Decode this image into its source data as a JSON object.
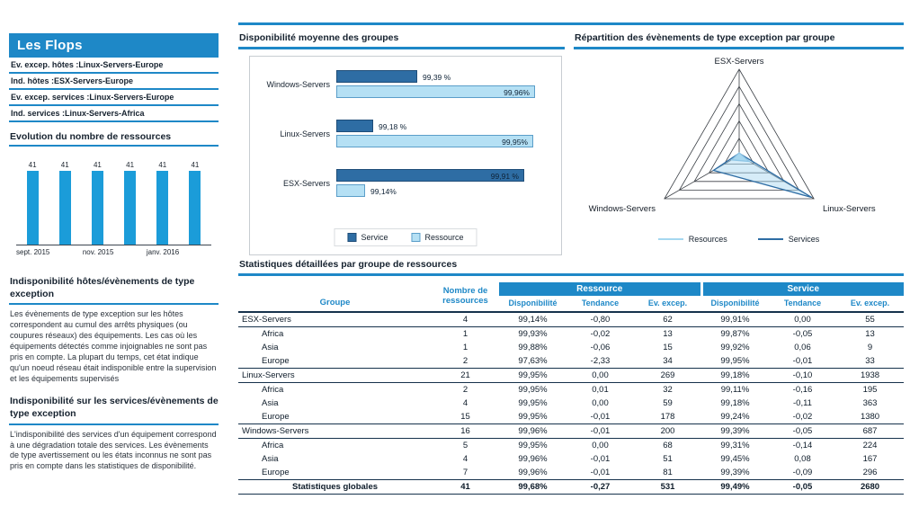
{
  "colors": {
    "accent_blue": "#1e88c7",
    "evolution_bar_blue": "#1b9cd9",
    "service_dark_blue": "#2e6da4",
    "ressource_light_blue": "#b5e0f4",
    "table_line_navy": "#16324c"
  },
  "sidebar": {
    "title": "Les Flops",
    "items": [
      {
        "label": "Ev. excep. hôtes :",
        "value": "Linux-Servers-Europe"
      },
      {
        "label": "Ind. hôtes :",
        "value": "ESX-Servers-Europe"
      },
      {
        "label": "Ev. excep. services :",
        "value": "Linux-Servers-Europe"
      },
      {
        "label": "Ind. services :",
        "value": "Linux-Servers-Africa"
      }
    ],
    "evolution_title": "Evolution du nombre de ressources",
    "notes": [
      {
        "title": "Indisponibilité  hôtes/évènements de type exception",
        "text": "Les évènements de type exception sur les hôtes correspondent au cumul des arrêts physiques (ou coupures réseaux) des équipements. Les cas où les équipements détectés comme injoignables ne sont pas pris en compte. La plupart du temps, cet état indique qu'un noeud réseau était indisponible entre la supervision et les équipements supervisés"
      },
      {
        "title": "Indisponibilité sur les services/évènements de type exception",
        "text": "L'indisponibilité des services d'un équipement correspond à une dégradation totale des services. Les évènements de type avertissement ou les états inconnus ne sont pas pris en compte dans les statistiques de disponibilité."
      }
    ]
  },
  "main": {
    "availability_title": "Disponibilité moyenne des groupes",
    "radar_title": "Répartition des évènements de type exception par groupe",
    "stats_title": "Statistiques détaillées par groupe de ressources"
  },
  "chart_data": [
    {
      "id": "evolution",
      "type": "bar",
      "title": "Evolution du nombre de ressources",
      "values": [
        41,
        41,
        41,
        41,
        41,
        41
      ],
      "x_tick_labels": [
        "sept. 2015",
        "",
        "nov. 2015",
        "",
        "janv. 2016",
        ""
      ],
      "ylim": [
        0,
        45
      ],
      "bar_color": "#1b9cd9"
    },
    {
      "id": "availability",
      "type": "bar",
      "orientation": "horizontal",
      "title": "Disponibilité moyenne des groupes",
      "categories": [
        "Windows-Servers",
        "Linux-Servers",
        "ESX-Servers"
      ],
      "series": [
        {
          "name": "Service",
          "key": "service",
          "color": "#2e6da4",
          "values": [
            99.39,
            99.18,
            99.91
          ],
          "labels": [
            "99,39 %",
            "99,18 %",
            "99,91 %"
          ]
        },
        {
          "name": "Ressource",
          "key": "ressource",
          "color": "#b5e0f4",
          "values": [
            99.96,
            99.95,
            99.14
          ],
          "labels": [
            "99,96%",
            "99,95%",
            "99,14%"
          ]
        }
      ],
      "xlim": [
        99.0,
        100.0
      ],
      "legend_position": "bottom"
    },
    {
      "id": "radar",
      "type": "radar",
      "title": "Répartition des évènements de type exception par groupe",
      "axes": [
        "ESX-Servers",
        "Linux-Servers",
        "Windows-Servers"
      ],
      "series": [
        {
          "name": "Resources",
          "key": "resources",
          "color": "#8ec6e6",
          "fill": "#a8d7ef",
          "values": [
            62,
            269,
            200
          ]
        },
        {
          "name": "Services",
          "key": "services",
          "color": "#2e6da4",
          "fill": "rgba(174,217,241,0.5)",
          "values": [
            55,
            1938,
            687
          ]
        }
      ],
      "max": 2000,
      "levels": 5,
      "legend_position": "bottom"
    },
    {
      "id": "stats",
      "type": "table",
      "title": "Statistiques détaillées par groupe de ressources",
      "columns": {
        "groupe": "Groupe",
        "nombre_line1": "Nombre de",
        "nombre_line2": "ressources",
        "ressource": "Ressource",
        "service": "Service",
        "disponibilite": "Disponibilité",
        "tendance": "Tendance",
        "ev_excep": "Ev. excep."
      },
      "rows": [
        {
          "level": "group",
          "cells": [
            "ESX-Servers",
            "4",
            "99,14%",
            "-0,80",
            "62",
            "99,91%",
            "0,00",
            "55"
          ]
        },
        {
          "level": "sub",
          "cells": [
            "Africa",
            "1",
            "99,93%",
            "-0,02",
            "13",
            "99,87%",
            "-0,05",
            "13"
          ]
        },
        {
          "level": "sub",
          "cells": [
            "Asia",
            "1",
            "99,88%",
            "-0,06",
            "15",
            "99,92%",
            "0,06",
            "9"
          ]
        },
        {
          "level": "sub",
          "cells": [
            "Europe",
            "2",
            "97,63%",
            "-2,33",
            "34",
            "99,95%",
            "-0,01",
            "33"
          ]
        },
        {
          "level": "group",
          "cells": [
            "Linux-Servers",
            "21",
            "99,95%",
            "0,00",
            "269",
            "99,18%",
            "-0,10",
            "1938"
          ]
        },
        {
          "level": "sub",
          "cells": [
            "Africa",
            "2",
            "99,95%",
            "0,01",
            "32",
            "99,11%",
            "-0,16",
            "195"
          ]
        },
        {
          "level": "sub",
          "cells": [
            "Asia",
            "4",
            "99,95%",
            "0,00",
            "59",
            "99,18%",
            "-0,11",
            "363"
          ]
        },
        {
          "level": "sub",
          "cells": [
            "Europe",
            "15",
            "99,95%",
            "-0,01",
            "178",
            "99,24%",
            "-0,02",
            "1380"
          ]
        },
        {
          "level": "group",
          "cells": [
            "Windows-Servers",
            "16",
            "99,96%",
            "-0,01",
            "200",
            "99,39%",
            "-0,05",
            "687"
          ]
        },
        {
          "level": "sub",
          "cells": [
            "Africa",
            "5",
            "99,95%",
            "0,00",
            "68",
            "99,31%",
            "-0,14",
            "224"
          ]
        },
        {
          "level": "sub",
          "cells": [
            "Asia",
            "4",
            "99,96%",
            "-0,01",
            "51",
            "99,45%",
            "0,08",
            "167"
          ]
        },
        {
          "level": "sub",
          "cells": [
            "Europe",
            "7",
            "99,96%",
            "-0,01",
            "81",
            "99,39%",
            "-0,09",
            "296"
          ]
        },
        {
          "level": "total",
          "cells": [
            "Statistiques globales",
            "41",
            "99,68%",
            "-0,27",
            "531",
            "99,49%",
            "-0,05",
            "2680"
          ]
        }
      ]
    }
  ]
}
